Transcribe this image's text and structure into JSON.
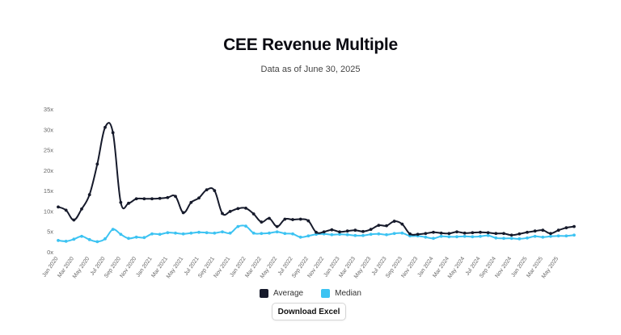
{
  "colors": {
    "average": "#161a2b",
    "median": "#3cc3f2"
  },
  "legend": {
    "average_label": "Average",
    "median_label": "Median"
  },
  "download_label": "Download Excel",
  "chart_data": {
    "type": "line",
    "title": "CEE Revenue Multiple",
    "subtitle": "Data as of June 30, 2025",
    "ylim": [
      0,
      35
    ],
    "yticks": [
      0,
      5,
      10,
      15,
      20,
      25,
      30,
      35
    ],
    "ytick_labels": [
      "0x",
      "5x",
      "10x",
      "15x",
      "20x",
      "25x",
      "30x",
      "35x"
    ],
    "x_tick_labels": [
      "Jan 2020",
      "Mar 2020",
      "May 2020",
      "Jul 2020",
      "Sep 2020",
      "Nov 2020",
      "Jan 2021",
      "Mar 2021",
      "May 2021",
      "Jul 2021",
      "Sep 2021",
      "Nov 2021",
      "Jan 2022",
      "Mar 2022",
      "May 2022",
      "Jul 2022",
      "Sep 2022",
      "Nov 2022",
      "Jan 2023",
      "Mar 2023",
      "May 2023",
      "Jul 2023",
      "Sep 2023",
      "Nov 2023",
      "Jan 2024",
      "Mar 2024",
      "May 2024",
      "Jul 2024",
      "Sep 2024",
      "Nov 2024",
      "Jan 2025",
      "Mar 2025",
      "May 2025"
    ],
    "series": [
      {
        "name": "Average",
        "values": [
          11.0,
          10.2,
          7.8,
          10.5,
          14.0,
          21.5,
          30.5,
          29.2,
          12.1,
          11.9,
          13.0,
          13.0,
          13.0,
          13.1,
          13.3,
          13.6,
          9.6,
          12.1,
          13.2,
          15.2,
          15.0,
          9.4,
          9.9,
          10.6,
          10.7,
          9.3,
          7.3,
          8.2,
          6.2,
          8.0,
          7.9,
          8.0,
          7.6,
          4.8,
          4.9,
          5.4,
          4.9,
          5.1,
          5.3,
          5.0,
          5.5,
          6.5,
          6.4,
          7.5,
          6.8,
          4.4,
          4.3,
          4.5,
          4.8,
          4.6,
          4.5,
          4.9,
          4.6,
          4.7,
          4.8,
          4.7,
          4.5,
          4.5,
          4.1,
          4.4,
          4.8,
          5.1,
          5.3,
          4.5,
          5.3,
          5.9,
          6.2
        ]
      },
      {
        "name": "Median",
        "values": [
          2.8,
          2.6,
          3.1,
          3.8,
          3.0,
          2.5,
          3.2,
          5.5,
          4.3,
          3.3,
          3.6,
          3.5,
          4.4,
          4.3,
          4.7,
          4.6,
          4.4,
          4.6,
          4.8,
          4.7,
          4.6,
          4.9,
          4.6,
          6.2,
          6.3,
          4.6,
          4.5,
          4.6,
          4.9,
          4.5,
          4.4,
          3.6,
          3.9,
          4.3,
          4.4,
          4.2,
          4.3,
          4.2,
          4.0,
          4.0,
          4.3,
          4.4,
          4.2,
          4.5,
          4.6,
          3.9,
          3.9,
          3.6,
          3.3,
          3.8,
          3.7,
          3.7,
          3.8,
          3.7,
          3.8,
          4.0,
          3.4,
          3.3,
          3.3,
          3.2,
          3.4,
          3.8,
          3.6,
          3.8,
          3.9,
          3.9,
          4.1
        ]
      }
    ]
  }
}
